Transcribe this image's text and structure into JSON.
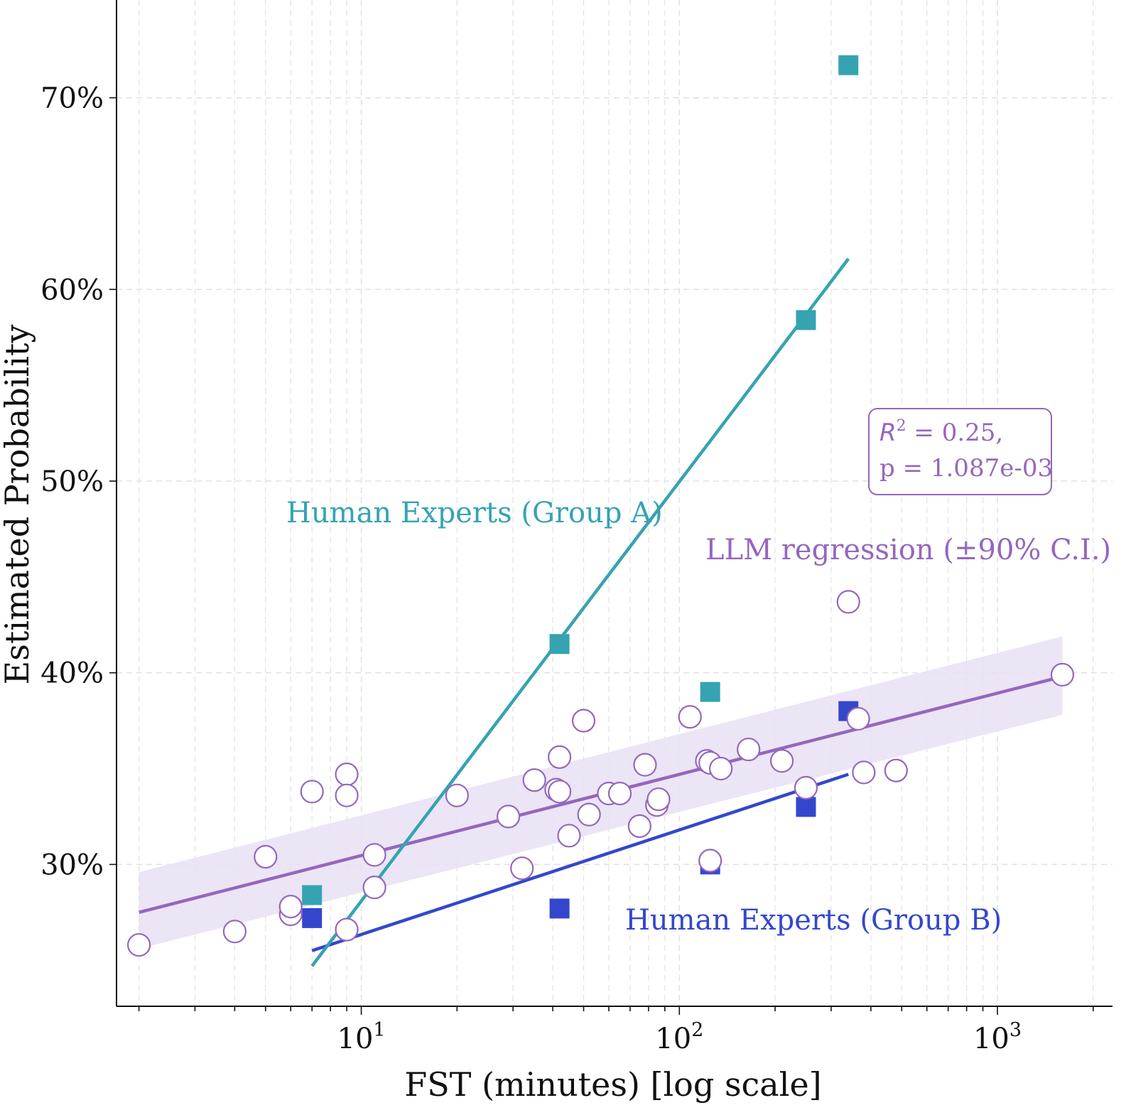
{
  "chart_data": {
    "type": "scatter",
    "xlabel": "FST (minutes) [log scale]",
    "ylabel": "Estimated Probability",
    "xscale": "log",
    "xlim": [
      1.7,
      2300
    ],
    "ylim": [
      0.226,
      0.751
    ],
    "x_ticks": [
      {
        "value": 10,
        "base": "10",
        "exp": "1"
      },
      {
        "value": 100,
        "base": "10",
        "exp": "2"
      },
      {
        "value": 1000,
        "base": "10",
        "exp": "3"
      }
    ],
    "y_ticks": [
      {
        "value": 0.3,
        "label": "30%"
      },
      {
        "value": 0.4,
        "label": "40%"
      },
      {
        "value": 0.5,
        "label": "50%"
      },
      {
        "value": 0.6,
        "label": "60%"
      },
      {
        "value": 0.7,
        "label": "70%"
      }
    ],
    "grid": true,
    "colors": {
      "llm": "#9467bd",
      "group_a": "#35a3b1",
      "group_b": "#3447cc",
      "ci_band": "#e8e0f4"
    },
    "series": [
      {
        "name": "Human Experts (Group A)",
        "marker": "square",
        "points": [
          [
            7,
            0.284
          ],
          [
            42,
            0.415
          ],
          [
            125,
            0.39
          ],
          [
            250,
            0.584
          ],
          [
            340,
            0.717
          ]
        ],
        "fit": {
          "x": [
            7,
            340
          ],
          "y": [
            0.247,
            0.616
          ]
        }
      },
      {
        "name": "Human Experts (Group B)",
        "marker": "square",
        "points": [
          [
            7,
            0.272
          ],
          [
            42,
            0.277
          ],
          [
            125,
            0.3
          ],
          [
            250,
            0.33
          ],
          [
            340,
            0.38
          ]
        ],
        "fit": {
          "x": [
            7,
            340
          ],
          "y": [
            0.255,
            0.347
          ]
        }
      },
      {
        "name": "LLM regression (±90% C.I.)",
        "marker": "open-circle",
        "points": [
          [
            2,
            0.258
          ],
          [
            4,
            0.265
          ],
          [
            5,
            0.304
          ],
          [
            6,
            0.274
          ],
          [
            6,
            0.278
          ],
          [
            7,
            0.338
          ],
          [
            9,
            0.347
          ],
          [
            9,
            0.336
          ],
          [
            9,
            0.266
          ],
          [
            11,
            0.305
          ],
          [
            11,
            0.288
          ],
          [
            20,
            0.336
          ],
          [
            29,
            0.325
          ],
          [
            32,
            0.298
          ],
          [
            35,
            0.344
          ],
          [
            41,
            0.339
          ],
          [
            42,
            0.356
          ],
          [
            42,
            0.338
          ],
          [
            45,
            0.315
          ],
          [
            50,
            0.375
          ],
          [
            52,
            0.326
          ],
          [
            60,
            0.337
          ],
          [
            65,
            0.337
          ],
          [
            75,
            0.32
          ],
          [
            78,
            0.352
          ],
          [
            85,
            0.331
          ],
          [
            86,
            0.334
          ],
          [
            108,
            0.377
          ],
          [
            122,
            0.354
          ],
          [
            125,
            0.353
          ],
          [
            125,
            0.302
          ],
          [
            135,
            0.35
          ],
          [
            165,
            0.36
          ],
          [
            210,
            0.354
          ],
          [
            250,
            0.34
          ],
          [
            340,
            0.437
          ],
          [
            365,
            0.376
          ],
          [
            380,
            0.348
          ],
          [
            480,
            0.349
          ],
          [
            1600,
            0.399
          ]
        ],
        "fit": {
          "x": [
            2,
            1600
          ],
          "y": [
            0.275,
            0.398
          ]
        },
        "ci": {
          "x": [
            2,
            1600
          ],
          "lower": [
            0.256,
            0.378
          ],
          "upper": [
            0.296,
            0.419
          ]
        }
      }
    ],
    "annotations": {
      "r2_symbol": "R",
      "r2_power": "2",
      "r2_value": " = 0.25,",
      "p_value": "p = 1.087e-03"
    }
  }
}
